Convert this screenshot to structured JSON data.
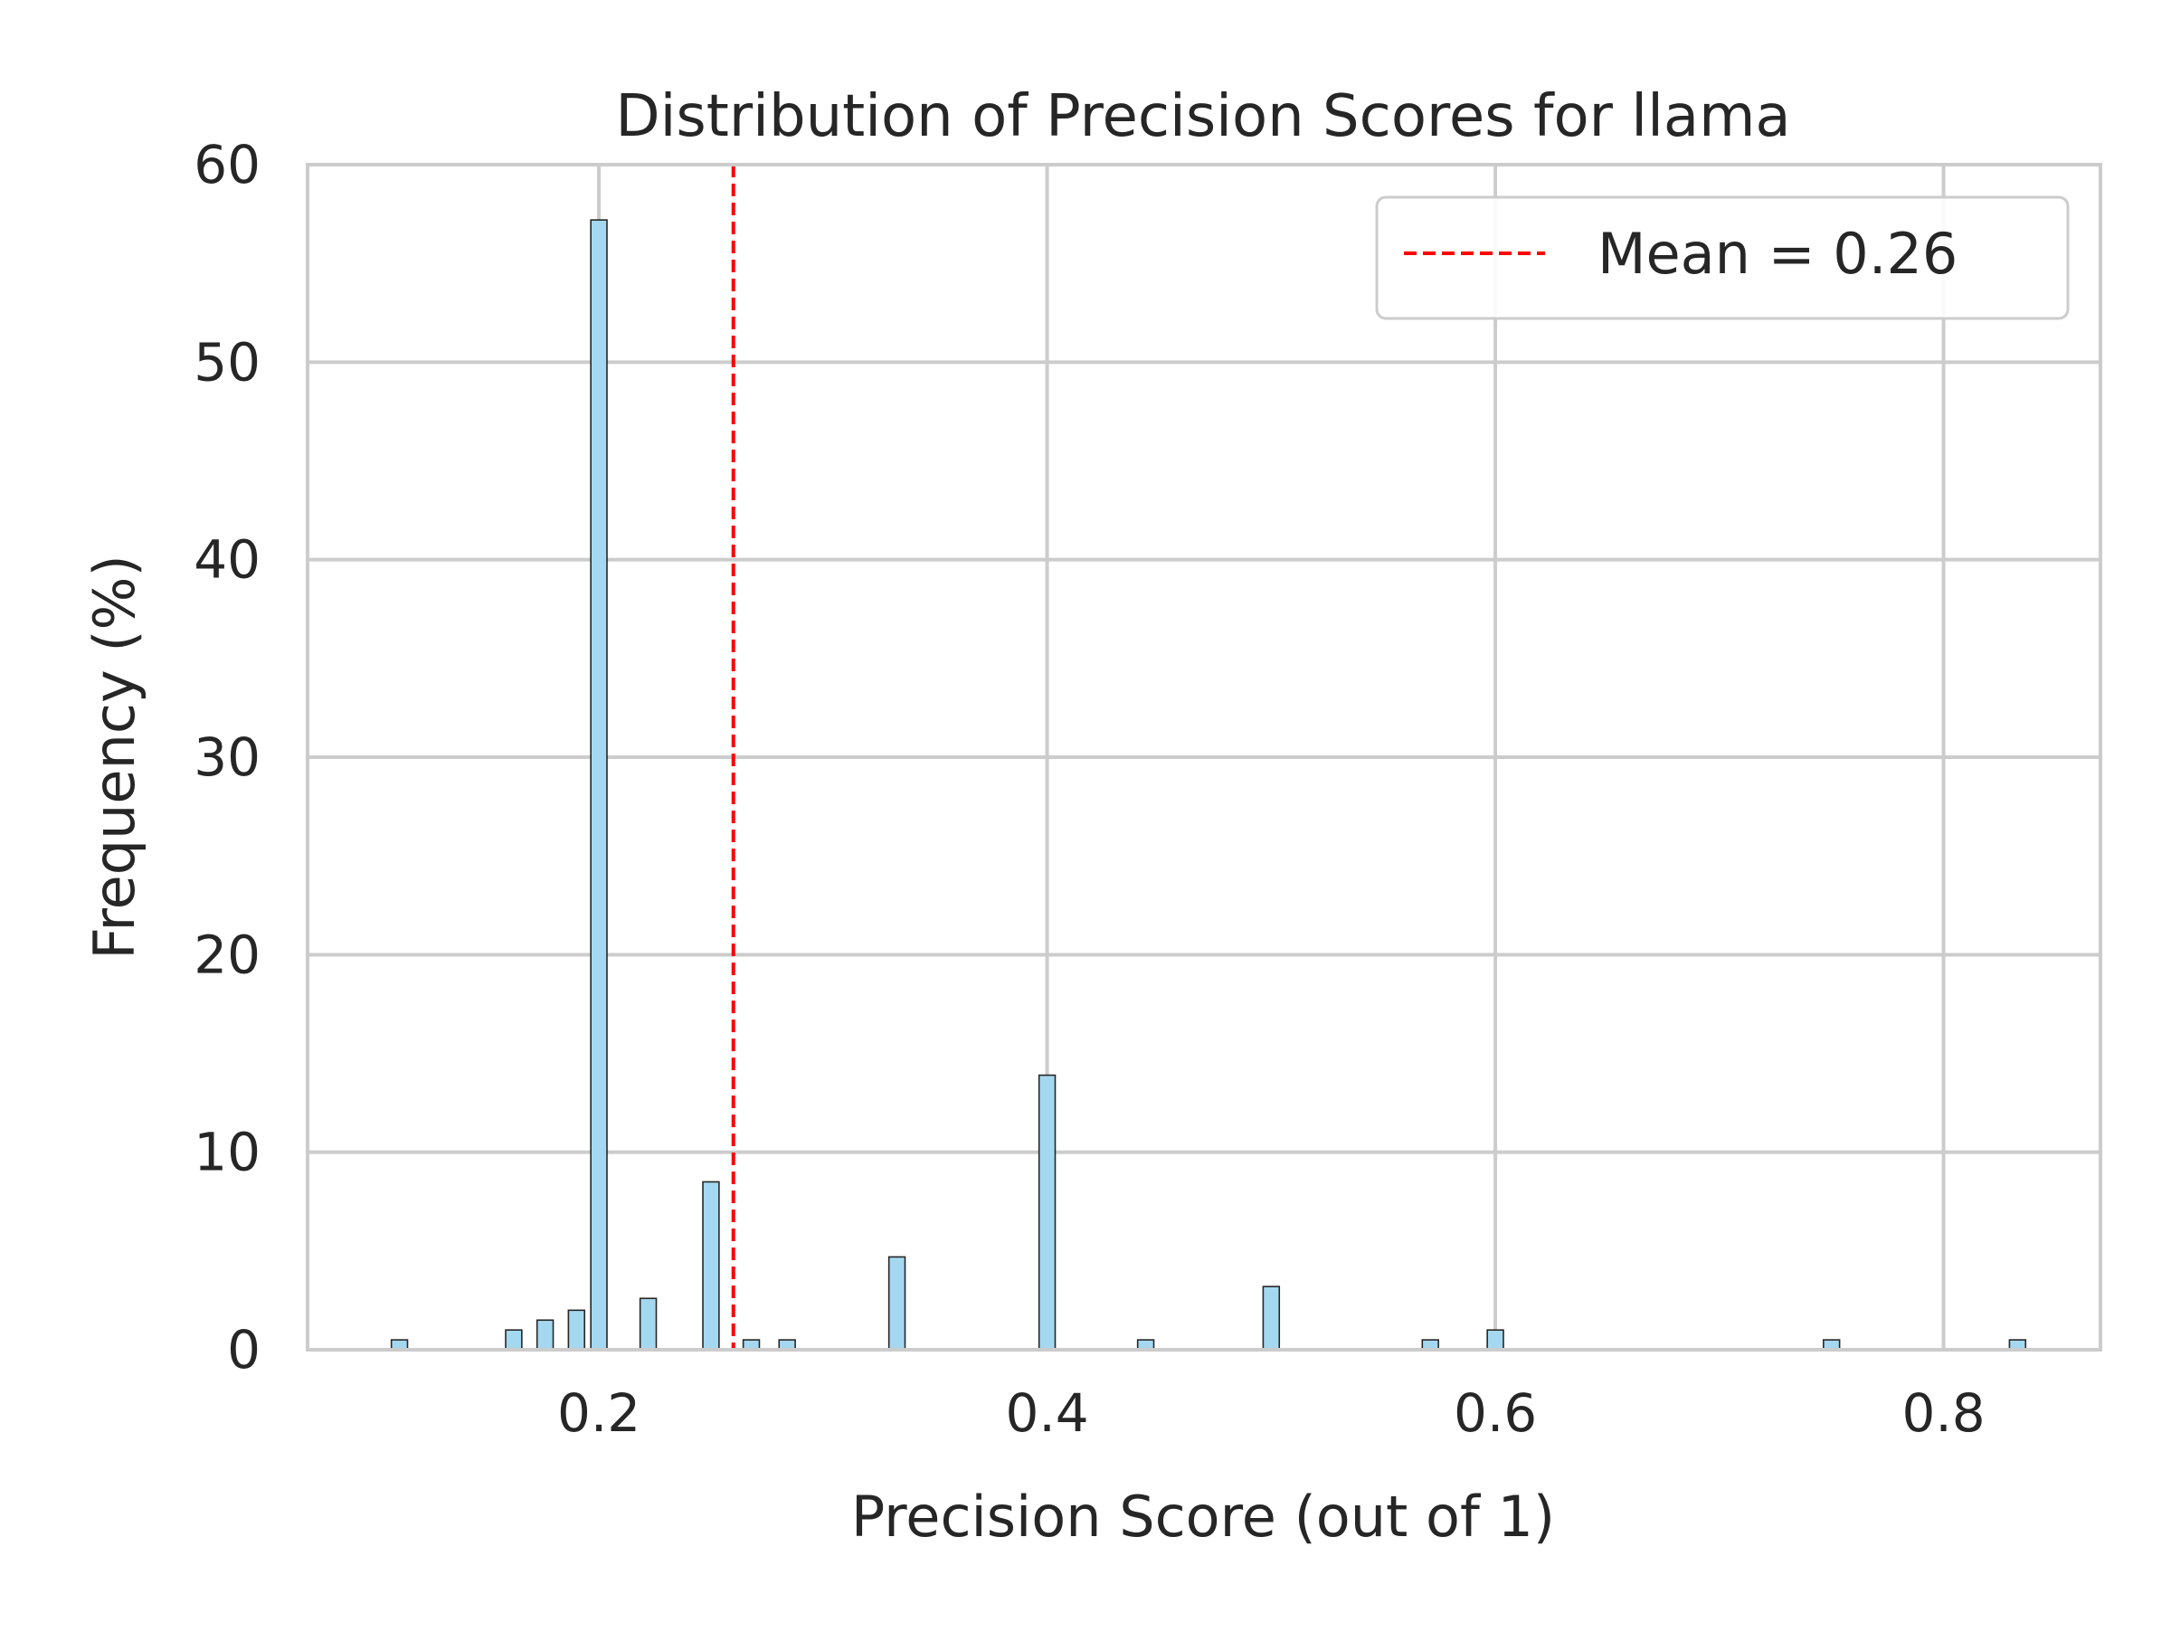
{
  "chart_data": {
    "type": "bar",
    "title": "Distribution of Precision Scores for llama",
    "xlabel": "Precision Score (out of 1)",
    "ylabel": "Frequency (%)",
    "xlim": [
      0.07,
      0.87
    ],
    "ylim": [
      0,
      60
    ],
    "x_ticks": [
      0.2,
      0.4,
      0.6,
      0.8
    ],
    "x_tick_labels": [
      "0.2",
      "0.4",
      "0.6",
      "0.8"
    ],
    "y_ticks": [
      0,
      10,
      20,
      30,
      40,
      50,
      60
    ],
    "y_tick_labels": [
      "0",
      "10",
      "20",
      "30",
      "40",
      "50",
      "60"
    ],
    "grid": true,
    "bar_color": "#a4d8f0",
    "bar_edge_color": "#262626",
    "bin_width": 0.0072,
    "x": [
      0.111,
      0.162,
      0.176,
      0.19,
      0.2,
      0.222,
      0.25,
      0.268,
      0.284,
      0.333,
      0.4,
      0.444,
      0.5,
      0.571,
      0.6,
      0.75,
      0.833
    ],
    "values": [
      0.5,
      1.0,
      1.5,
      2.0,
      57.2,
      2.6,
      8.5,
      0.5,
      0.5,
      4.7,
      13.9,
      0.5,
      3.2,
      0.5,
      1.0,
      0.5,
      0.5
    ],
    "mean_line": {
      "value": 0.26,
      "label": "Mean = 0.26",
      "color": "#ff0000",
      "style": "dashed"
    },
    "legend_position": "upper right"
  }
}
